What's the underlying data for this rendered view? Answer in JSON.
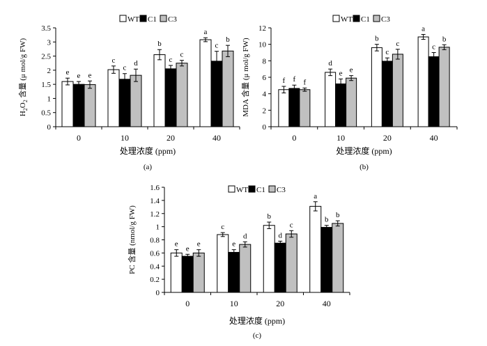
{
  "chart_data": [
    {
      "type": "bar",
      "panel_label": "(a)",
      "categories": [
        "0",
        "10",
        "20",
        "40"
      ],
      "xlabel": "处理浓度 (ppm)",
      "ylabel": "H2O2 含量 (μ mol/g FW)",
      "ylabel_parts": {
        "main": "H",
        "sub1": "2",
        "mid": "O",
        "sub2": "2",
        "rest": " 含量 (μ mol/g FW)"
      },
      "ylim": [
        0,
        3.5
      ],
      "yticks": [
        "0",
        "0.5",
        "1",
        "1.5",
        "2",
        "2.5",
        "3",
        "3.5"
      ],
      "legend_position": "top",
      "series": [
        {
          "name": "WT",
          "color": "#ffffff",
          "values": [
            1.6,
            2.02,
            2.55,
            3.08
          ],
          "errors": [
            0.12,
            0.13,
            0.18,
            0.07
          ],
          "labels": [
            "e",
            "c",
            "b",
            "a"
          ]
        },
        {
          "name": "C1",
          "color": "#000000",
          "values": [
            1.5,
            1.68,
            2.05,
            2.32
          ],
          "errors": [
            0.1,
            0.2,
            0.12,
            0.35
          ],
          "labels": [
            "e",
            "c",
            "c",
            "c"
          ]
        },
        {
          "name": "C3",
          "color": "#c0c0c0",
          "values": [
            1.49,
            1.82,
            2.25,
            2.68
          ],
          "errors": [
            0.13,
            0.22,
            0.1,
            0.2
          ],
          "labels": [
            "e",
            "d",
            "c",
            "b"
          ]
        }
      ]
    },
    {
      "type": "bar",
      "panel_label": "(b)",
      "categories": [
        "0",
        "10",
        "20",
        "40"
      ],
      "xlabel": "处理浓度 (ppm)",
      "ylabel": "MDA 含量 (μ mol/g FW)",
      "ylim": [
        0,
        12
      ],
      "yticks": [
        "0",
        "2",
        "4",
        "6",
        "8",
        "10",
        "12"
      ],
      "legend_position": "top",
      "series": [
        {
          "name": "WT",
          "color": "#ffffff",
          "values": [
            4.5,
            6.6,
            9.6,
            10.9
          ],
          "errors": [
            0.4,
            0.4,
            0.4,
            0.3
          ],
          "labels": [
            "f",
            "d",
            "b",
            "a"
          ]
        },
        {
          "name": "C1",
          "color": "#000000",
          "values": [
            4.65,
            5.2,
            7.95,
            8.5
          ],
          "errors": [
            0.4,
            0.6,
            0.4,
            0.5
          ],
          "labels": [
            "f",
            "e",
            "c",
            "c"
          ]
        },
        {
          "name": "C3",
          "color": "#c0c0c0",
          "values": [
            4.5,
            5.9,
            8.8,
            9.65
          ],
          "errors": [
            0.2,
            0.3,
            0.6,
            0.3
          ],
          "labels": [
            "f",
            "e",
            "c",
            "b"
          ]
        }
      ]
    },
    {
      "type": "bar",
      "panel_label": "(c)",
      "categories": [
        "0",
        "10",
        "20",
        "40"
      ],
      "xlabel": "处理浓度 (ppm)",
      "ylabel": "PC 含量 (nmol/g FW)",
      "ylim": [
        0,
        1.6
      ],
      "yticks": [
        "0",
        "0.2",
        "0.4",
        "0.6",
        "0.8",
        "1",
        "1.2",
        "1.4",
        "1.6"
      ],
      "legend_position": "top",
      "series": [
        {
          "name": "WT",
          "color": "#ffffff",
          "values": [
            0.6,
            0.88,
            1.02,
            1.31
          ],
          "errors": [
            0.05,
            0.03,
            0.05,
            0.07
          ],
          "labels": [
            "e",
            "c",
            "b",
            "a"
          ]
        },
        {
          "name": "C1",
          "color": "#000000",
          "values": [
            0.55,
            0.61,
            0.75,
            0.99
          ],
          "errors": [
            0.03,
            0.04,
            0.03,
            0.03
          ],
          "labels": [
            "e",
            "e",
            "d",
            "b"
          ]
        },
        {
          "name": "C3",
          "color": "#c0c0c0",
          "values": [
            0.6,
            0.73,
            0.89,
            1.05
          ],
          "errors": [
            0.05,
            0.04,
            0.05,
            0.04
          ],
          "labels": [
            "e",
            "d",
            "c",
            "b"
          ]
        }
      ]
    }
  ]
}
